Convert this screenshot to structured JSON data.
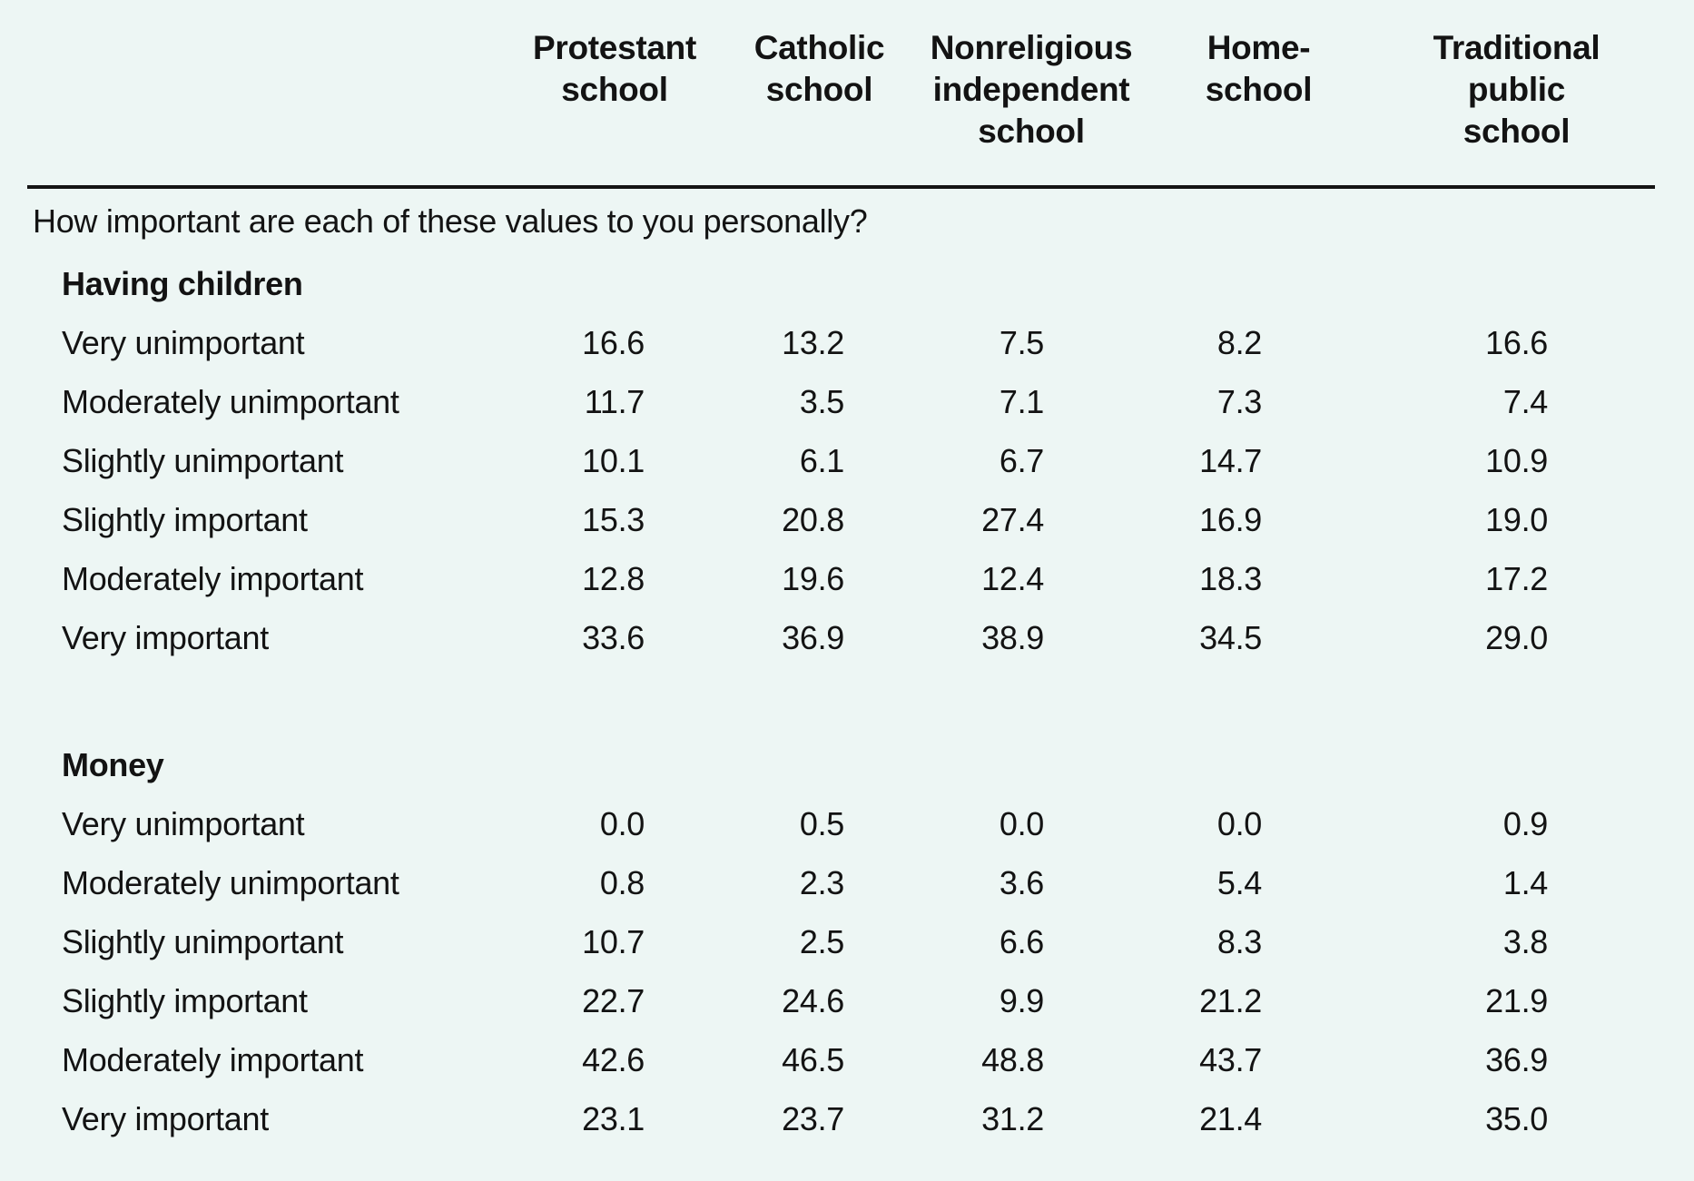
{
  "page": {
    "background_color": "#edf6f4",
    "text_color": "#131313",
    "rule_color": "#141414"
  },
  "chart_data": {
    "type": "table",
    "question": "How important are each of these values to you personally?",
    "columns": [
      {
        "label": "Protestant school",
        "lines": [
          "Protestant",
          "school"
        ]
      },
      {
        "label": "Catholic school",
        "lines": [
          "Catholic",
          "school"
        ]
      },
      {
        "label": "Nonreligious independent school",
        "lines": [
          "Nonreligious",
          "independent",
          "school"
        ]
      },
      {
        "label": "Home-school",
        "lines": [
          "Home-",
          "school"
        ]
      },
      {
        "label": "Traditional public school",
        "lines": [
          "Traditional",
          "public",
          "school"
        ]
      }
    ],
    "sections": [
      {
        "title": "Having children",
        "rows": [
          {
            "label": "Very unimportant",
            "values": [
              "16.6",
              "13.2",
              "7.5",
              "8.2",
              "16.6"
            ]
          },
          {
            "label": "Moderately unimportant",
            "values": [
              "11.7",
              "3.5",
              "7.1",
              "7.3",
              "7.4"
            ]
          },
          {
            "label": "Slightly unimportant",
            "values": [
              "10.1",
              "6.1",
              "6.7",
              "14.7",
              "10.9"
            ]
          },
          {
            "label": "Slightly important",
            "values": [
              "15.3",
              "20.8",
              "27.4",
              "16.9",
              "19.0"
            ]
          },
          {
            "label": "Moderately important",
            "values": [
              "12.8",
              "19.6",
              "12.4",
              "18.3",
              "17.2"
            ]
          },
          {
            "label": "Very important",
            "values": [
              "33.6",
              "36.9",
              "38.9",
              "34.5",
              "29.0"
            ]
          }
        ]
      },
      {
        "title": "Money",
        "rows": [
          {
            "label": "Very unimportant",
            "values": [
              "0.0",
              "0.5",
              "0.0",
              "0.0",
              "0.9"
            ]
          },
          {
            "label": "Moderately unimportant",
            "values": [
              "0.8",
              "2.3",
              "3.6",
              "5.4",
              "1.4"
            ]
          },
          {
            "label": "Slightly unimportant",
            "values": [
              "10.7",
              "2.5",
              "6.6",
              "8.3",
              "3.8"
            ]
          },
          {
            "label": "Slightly important",
            "values": [
              "22.7",
              "24.6",
              "9.9",
              "21.2",
              "21.9"
            ]
          },
          {
            "label": "Moderately important",
            "values": [
              "42.6",
              "46.5",
              "48.8",
              "43.7",
              "36.9"
            ]
          },
          {
            "label": "Very important",
            "values": [
              "23.1",
              "23.7",
              "31.2",
              "21.4",
              "35.0"
            ]
          }
        ]
      }
    ]
  }
}
